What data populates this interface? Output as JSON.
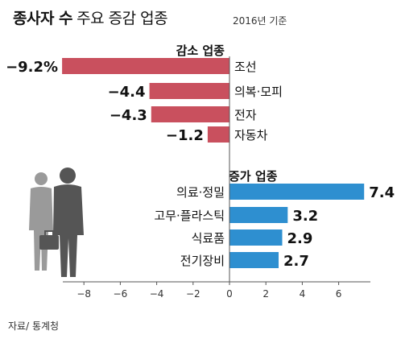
{
  "header": {
    "title_bold": "종사자 수",
    "title_light": "주요 증감 업종",
    "year_note": "2016년 기준"
  },
  "source": "자료/ 통계청",
  "colors": {
    "decrease": "#c9505e",
    "increase": "#2e8fd0",
    "axis": "#555555",
    "grid": "#bbbbbb"
  },
  "illustration": "businessman-silhouette-icon",
  "chart_data": {
    "type": "bar",
    "orientation": "horizontal",
    "xlim": [
      -9.2,
      7.4
    ],
    "x_ticks": [
      -8,
      -6,
      -4,
      -2,
      0,
      2,
      4,
      6
    ],
    "x_tick_labels": [
      "−8",
      "−6",
      "−4",
      "−2",
      "0",
      "2",
      "4",
      "6"
    ],
    "grid": false,
    "groups": [
      {
        "name": "감소 업종",
        "categories": [
          "조선",
          "의복·모피",
          "전자",
          "자동차"
        ],
        "values": [
          -9.2,
          -4.4,
          -4.3,
          -1.2
        ],
        "labels": [
          "−9.2%",
          "−4.4",
          "−4.3",
          "−1.2"
        ]
      },
      {
        "name": "증가 업종",
        "categories": [
          "의료·정밀",
          "고무·플라스틱",
          "식료품",
          "전기장비"
        ],
        "values": [
          7.4,
          3.2,
          2.9,
          2.7
        ],
        "labels": [
          "7.4",
          "3.2",
          "2.9",
          "2.7"
        ]
      }
    ]
  }
}
